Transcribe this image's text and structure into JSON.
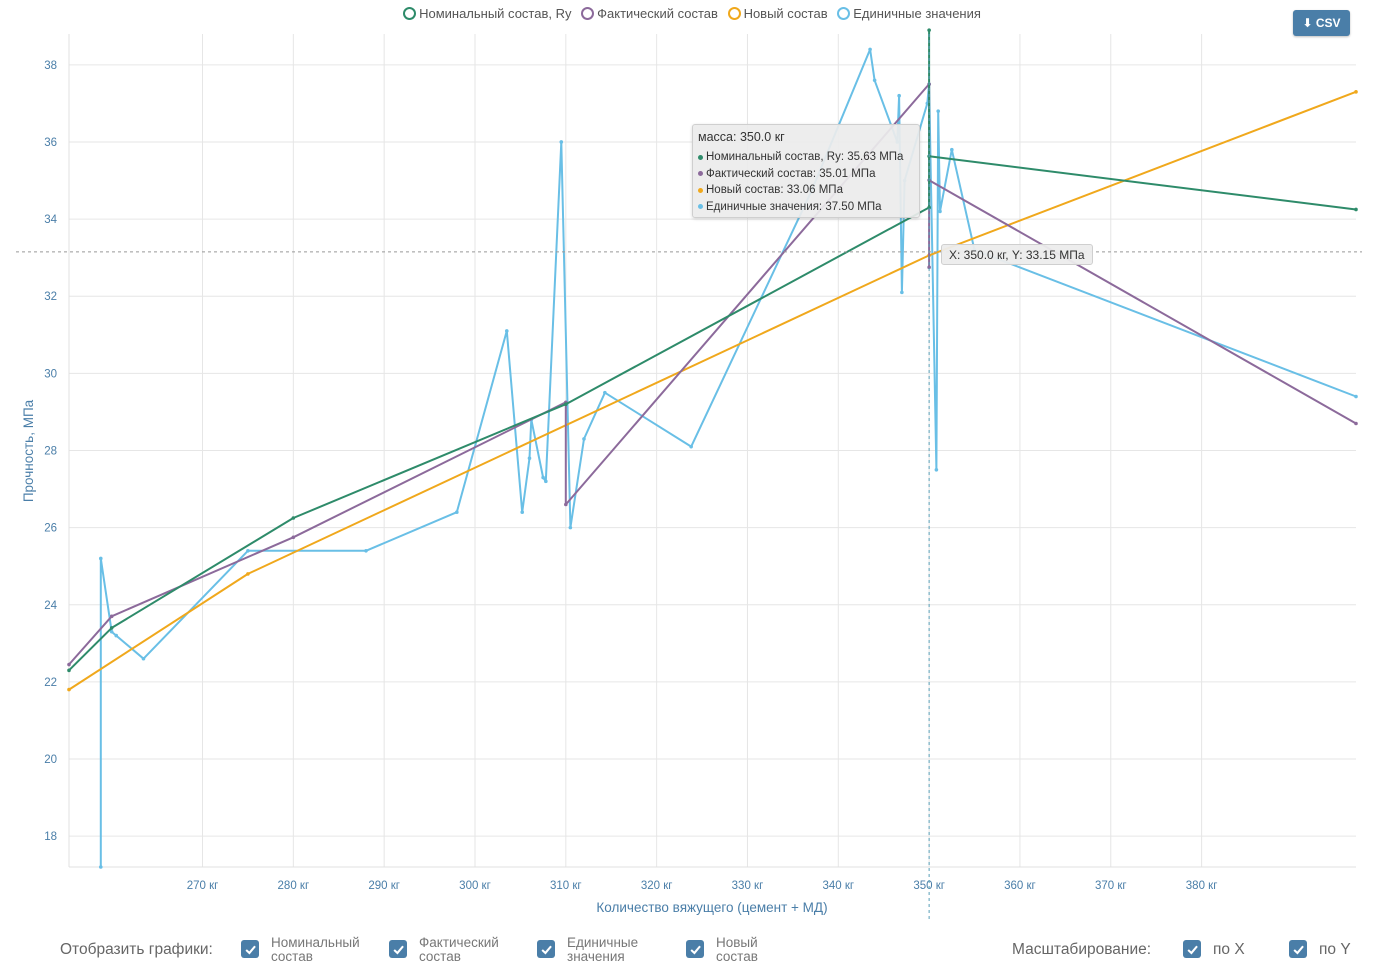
{
  "legend": [
    {
      "label": "Номинальный состав, Ry",
      "color": "#2e8b6a"
    },
    {
      "label": "Фактический состав",
      "color": "#8c6a9b"
    },
    {
      "label": "Новый состав",
      "color": "#f0a81c"
    },
    {
      "label": "Единичные значения",
      "color": "#69bfe6"
    }
  ],
  "csv_button": {
    "label": "⬇ CSV"
  },
  "tooltip": {
    "title": "масса: 350.0 кг",
    "rows": [
      {
        "text": "Номинальный состав, Ry: 35.63 МПа",
        "color": "#2e8b6a"
      },
      {
        "text": "Фактический состав: 35.01 МПа",
        "color": "#8c6a9b"
      },
      {
        "text": "Новый состав: 33.06 МПа",
        "color": "#f0a81c"
      },
      {
        "text": "Единичные значения: 37.50 МПа",
        "color": "#69bfe6"
      }
    ]
  },
  "crosshair": {
    "label": "X: 350.0 кг, Y: 33.15 МПа",
    "x": 350.0,
    "y": 33.15
  },
  "controls": {
    "show_label": "Отобразить графики:",
    "toggles": [
      {
        "line1": "Номинальный",
        "line2": "состав",
        "checked": true
      },
      {
        "line1": "Фактический",
        "line2": "состав",
        "checked": true
      },
      {
        "line1": "Единичные",
        "line2": "значения",
        "checked": true
      },
      {
        "line1": "Новый",
        "line2": "состав",
        "checked": true
      }
    ],
    "scale_label": "Масштабирование:",
    "scale_toggles": [
      {
        "label": "по X",
        "checked": true
      },
      {
        "label": "по Y",
        "checked": true
      }
    ]
  },
  "chart_data": {
    "type": "line",
    "xlabel": "Количество вяжущего (цемент + МД)",
    "ylabel": "Прочность, МПа",
    "xlim": [
      255.3,
      397.0
    ],
    "ylim": [
      17.2,
      38.8
    ],
    "x_ticks": [
      270,
      280,
      290,
      300,
      310,
      320,
      330,
      340,
      350,
      360,
      370,
      380
    ],
    "x_tick_labels": [
      "270 кг",
      "280 кг",
      "290 кг",
      "300 кг",
      "310 кг",
      "320 кг",
      "330 кг",
      "340 кг",
      "350 кг",
      "360 кг",
      "370 кг",
      "380 кг"
    ],
    "y_ticks": [
      18,
      20,
      22,
      24,
      26,
      28,
      30,
      32,
      34,
      36,
      38
    ],
    "y_tick_labels": [
      "18",
      "20",
      "22",
      "24",
      "26",
      "28",
      "30",
      "32",
      "34",
      "36",
      "38"
    ],
    "grid": true,
    "legend_position": "top-center",
    "series": [
      {
        "name": "Номинальный состав, Ry",
        "color": "#2e8b6a",
        "points": [
          [
            255.3,
            22.3
          ],
          [
            260,
            23.4
          ],
          [
            280,
            26.25
          ],
          [
            310,
            29.2
          ],
          [
            350,
            34.3
          ],
          [
            350,
            38.9
          ],
          [
            350,
            35.63
          ],
          [
            397,
            34.25
          ]
        ]
      },
      {
        "name": "Фактический состав",
        "color": "#8c6a9b",
        "points": [
          [
            255.3,
            22.45
          ],
          [
            260,
            23.7
          ],
          [
            280,
            25.75
          ],
          [
            310,
            29.25
          ],
          [
            310,
            26.6
          ],
          [
            350,
            37.5
          ],
          [
            350,
            32.75
          ],
          [
            350,
            35.01
          ],
          [
            397,
            28.7
          ]
        ]
      },
      {
        "name": "Новый состав",
        "color": "#f0a81c",
        "points": [
          [
            255.3,
            21.8
          ],
          [
            275,
            24.8
          ],
          [
            350,
            33.06
          ],
          [
            397,
            37.3
          ]
        ]
      },
      {
        "name": "Единичные значения",
        "color": "#69bfe6",
        "points": [
          [
            258.8,
            17.2
          ],
          [
            258.8,
            25.2
          ],
          [
            260,
            23.3
          ],
          [
            260.5,
            23.2
          ],
          [
            263.5,
            22.6
          ],
          [
            275,
            25.4
          ],
          [
            288,
            25.4
          ],
          [
            298,
            26.4
          ],
          [
            303.5,
            31.1
          ],
          [
            305.2,
            26.4
          ],
          [
            306,
            27.8
          ],
          [
            306.2,
            28.8
          ],
          [
            307.5,
            27.3
          ],
          [
            307.8,
            27.2
          ],
          [
            309.5,
            36.0
          ],
          [
            310.5,
            26.0
          ],
          [
            312,
            28.3
          ],
          [
            314.3,
            29.5
          ],
          [
            323.8,
            28.1
          ],
          [
            337,
            34.7
          ],
          [
            343.5,
            38.4
          ],
          [
            344,
            37.6
          ],
          [
            346.5,
            36.0
          ],
          [
            346.7,
            37.2
          ],
          [
            347,
            32.1
          ],
          [
            347.3,
            35.0
          ],
          [
            349.8,
            37.0
          ],
          [
            350,
            37.5
          ],
          [
            350.8,
            27.5
          ],
          [
            351,
            36.8
          ],
          [
            351.2,
            34.2
          ],
          [
            352.5,
            35.8
          ],
          [
            355,
            33.2
          ],
          [
            397,
            29.4
          ]
        ]
      }
    ]
  }
}
